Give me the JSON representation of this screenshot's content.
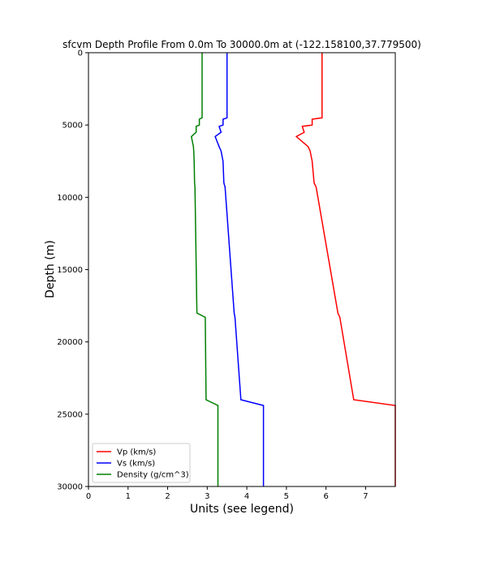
{
  "chart_data": {
    "type": "line",
    "title": "sfcvm Depth Profile From 0.0m To 30000.0m at (-122.158100,37.779500)",
    "xlabel": "Units (see legend)",
    "ylabel": "Depth (m)",
    "xlim": [
      0,
      7.75
    ],
    "ylim": [
      30000,
      0
    ],
    "y_inverted": true,
    "xticks": [
      0,
      1,
      2,
      3,
      4,
      5,
      6,
      7
    ],
    "yticks": [
      0,
      5000,
      10000,
      15000,
      20000,
      25000,
      30000
    ],
    "legend_position": "lower-left",
    "grid": false,
    "series": [
      {
        "name": "Vp (km/s)",
        "color": "#ff0000",
        "points": [
          [
            5.9,
            0
          ],
          [
            5.9,
            4500
          ],
          [
            5.65,
            4600
          ],
          [
            5.65,
            5000
          ],
          [
            5.4,
            5100
          ],
          [
            5.45,
            5500
          ],
          [
            5.25,
            5800
          ],
          [
            5.55,
            6500
          ],
          [
            5.6,
            6800
          ],
          [
            5.65,
            7500
          ],
          [
            5.7,
            9000
          ],
          [
            5.75,
            9300
          ],
          [
            6.3,
            18000
          ],
          [
            6.35,
            18300
          ],
          [
            6.7,
            24000
          ],
          [
            7.75,
            24400
          ],
          [
            7.75,
            30000
          ]
        ]
      },
      {
        "name": "Vs (km/s)",
        "color": "#0000ff",
        "points": [
          [
            3.5,
            0
          ],
          [
            3.5,
            4500
          ],
          [
            3.4,
            4600
          ],
          [
            3.4,
            5000
          ],
          [
            3.3,
            5100
          ],
          [
            3.35,
            5500
          ],
          [
            3.2,
            5800
          ],
          [
            3.3,
            6500
          ],
          [
            3.35,
            6800
          ],
          [
            3.4,
            7500
          ],
          [
            3.42,
            9000
          ],
          [
            3.45,
            9300
          ],
          [
            3.68,
            18000
          ],
          [
            3.7,
            18300
          ],
          [
            3.85,
            24000
          ],
          [
            4.42,
            24400
          ],
          [
            4.42,
            30000
          ]
        ]
      },
      {
        "name": "Density (g/cm^3)",
        "color": "#008000",
        "points": [
          [
            2.87,
            0
          ],
          [
            2.87,
            4500
          ],
          [
            2.8,
            4600
          ],
          [
            2.8,
            5000
          ],
          [
            2.72,
            5100
          ],
          [
            2.72,
            5500
          ],
          [
            2.6,
            5800
          ],
          [
            2.65,
            6500
          ],
          [
            2.66,
            6800
          ],
          [
            2.67,
            7500
          ],
          [
            2.68,
            9000
          ],
          [
            2.69,
            9300
          ],
          [
            2.74,
            18000
          ],
          [
            2.95,
            18300
          ],
          [
            2.97,
            24000
          ],
          [
            3.27,
            24400
          ],
          [
            3.27,
            30000
          ]
        ]
      }
    ]
  }
}
